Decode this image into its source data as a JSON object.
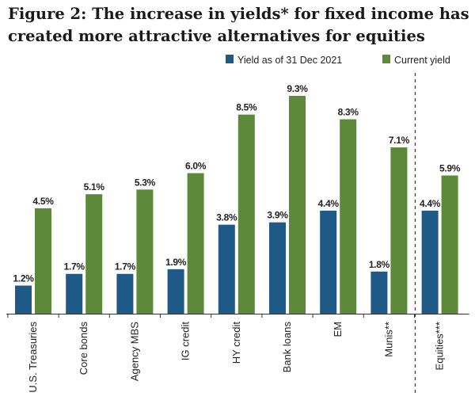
{
  "chart_data": {
    "type": "bar",
    "title": "Figure 2: The increase in yields* for fixed income has created more attractive alternatives for equities",
    "categories": [
      "U.S. Treasuries",
      "Core bonds",
      "Agency MBS",
      "IG credit",
      "HY credit",
      "Bank loans",
      "EM",
      "Munis**",
      "Equities***"
    ],
    "series": [
      {
        "name": "Yield as of 31 Dec 2021",
        "color": "#1f5a87",
        "values": [
          1.2,
          1.7,
          1.7,
          1.9,
          3.8,
          3.9,
          4.4,
          1.8,
          4.4
        ],
        "labels": [
          "1.2%",
          "1.7%",
          "1.7%",
          "1.9%",
          "3.8%",
          "3.9%",
          "4.4%",
          "1.8%",
          "4.4%"
        ]
      },
      {
        "name": "Current yield",
        "color": "#5c8a3a",
        "values": [
          4.5,
          5.1,
          5.3,
          6.0,
          8.5,
          9.3,
          8.3,
          7.1,
          5.9
        ],
        "labels": [
          "4.5%",
          "5.1%",
          "5.3%",
          "6.0%",
          "8.5%",
          "9.3%",
          "8.3%",
          "7.1%",
          "5.9%"
        ]
      }
    ],
    "ylim": [
      0,
      9.3
    ],
    "grid": false,
    "legend_position": "top-right",
    "divider_before_category": "Equities***"
  }
}
